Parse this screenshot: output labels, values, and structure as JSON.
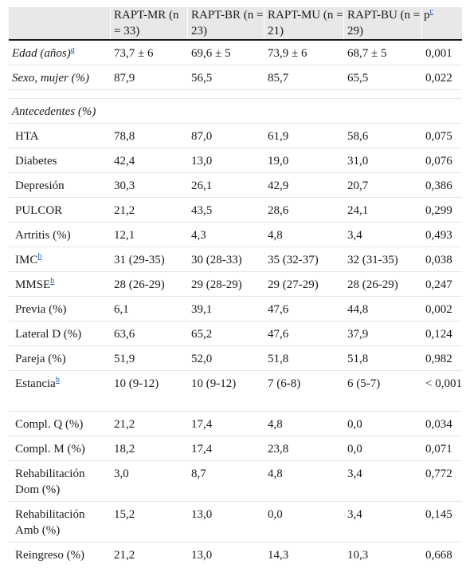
{
  "columns": [
    "",
    "RAPT-MR (n = 33)",
    "RAPT-BR (n = 23)",
    "RAPT-MU (n = 21)",
    "RAPT-BU (n = 29)",
    "p"
  ],
  "columns_sup": [
    "",
    "",
    "",
    "",
    "",
    "c"
  ],
  "rows": [
    {
      "label": "Edad (años)",
      "sup": "a",
      "italic": true,
      "values": [
        "73,7 ± 6",
        "69,6 ± 5",
        "73,9 ± 6",
        "68,7 ± 5",
        "0,001"
      ]
    },
    {
      "label": "Sexo, mujer (%)",
      "sup": "",
      "italic": true,
      "values": [
        "87,9",
        "56,5",
        "85,7",
        "65,5",
        "0,022"
      ]
    },
    {
      "label": "Antecedentes (%)",
      "section": true
    },
    {
      "label": "HTA",
      "sup": "",
      "values": [
        "78,8",
        "87,0",
        "61,9",
        "58,6",
        "0,075"
      ]
    },
    {
      "label": "Diabetes",
      "sup": "",
      "values": [
        "42,4",
        "13,0",
        "19,0",
        "31,0",
        "0,076"
      ]
    },
    {
      "label": "Depresión",
      "sup": "",
      "values": [
        "30,3",
        "26,1",
        "42,9",
        "20,7",
        "0,386"
      ]
    },
    {
      "label": "PULCOR",
      "sup": "",
      "values": [
        "21,2",
        "43,5",
        "28,6",
        "24,1",
        "0,299"
      ]
    },
    {
      "label": "Artritis (%)",
      "sup": "",
      "values": [
        "12,1",
        "4,3",
        "4,8",
        "3,4",
        "0,493"
      ]
    },
    {
      "label": "IMC",
      "sup": "b",
      "values": [
        "31 (29-35)",
        "30 (28-33)",
        "35 (32-37)",
        "32 (31-35)",
        "0,038"
      ]
    },
    {
      "label": "MMSE",
      "sup": "b",
      "values": [
        "28 (26-29)",
        "29 (28-29)",
        "29 (27-29)",
        "28 (26-29)",
        "0,247"
      ]
    },
    {
      "label": "Previa (%)",
      "sup": "",
      "values": [
        "6,1",
        "39,1",
        "47,6",
        "44,8",
        "0,002"
      ]
    },
    {
      "label": "Lateral D (%)",
      "sup": "",
      "values": [
        "63,6",
        "65,2",
        "47,6",
        "37,9",
        "0,124"
      ]
    },
    {
      "label": "Pareja (%)",
      "sup": "",
      "values": [
        "51,9",
        "52,0",
        "51,8",
        "51,8",
        "0,982"
      ]
    },
    {
      "label": "Estancia",
      "sup": "b",
      "tall": true,
      "values": [
        "10 (9-12)",
        "10 (9-12)",
        "7 (6-8)",
        "6 (5-7)",
        "< 0,001"
      ]
    },
    {
      "label": "Compl. Q (%)",
      "sup": "",
      "values": [
        "21,2",
        "17,4",
        "4,8",
        "0,0",
        "0,034"
      ]
    },
    {
      "label": "Compl. M (%)",
      "sup": "",
      "values": [
        "18,2",
        "17,4",
        "23,8",
        "0,0",
        "0,071"
      ]
    },
    {
      "label": "Rehabilitación Dom (%)",
      "sup": "",
      "tall": true,
      "values": [
        "3,0",
        "8,7",
        "4,8",
        "3,4",
        "0,772"
      ]
    },
    {
      "label": "Rehabilitación Amb (%)",
      "sup": "",
      "tall": true,
      "values": [
        "15,2",
        "13,0",
        "0,0",
        "3,4",
        "0,145"
      ]
    },
    {
      "label": "Reingreso (%)",
      "sup": "",
      "last": true,
      "values": [
        "21,2",
        "13,0",
        "14,3",
        "10,3",
        "0,668"
      ]
    }
  ]
}
